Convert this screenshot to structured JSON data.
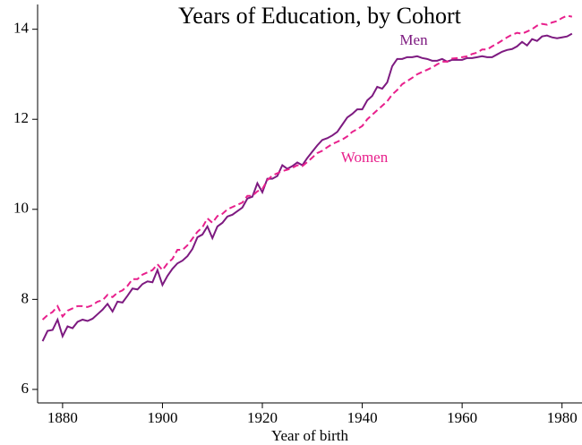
{
  "chart_data": {
    "type": "line",
    "title": "Years of Education, by Cohort",
    "xlabel": "Year of birth",
    "x": [
      1876,
      1877,
      1878,
      1879,
      1880,
      1881,
      1882,
      1883,
      1884,
      1885,
      1886,
      1887,
      1888,
      1889,
      1890,
      1891,
      1892,
      1893,
      1894,
      1895,
      1896,
      1897,
      1898,
      1899,
      1900,
      1901,
      1902,
      1903,
      1904,
      1905,
      1906,
      1907,
      1908,
      1909,
      1910,
      1911,
      1912,
      1913,
      1914,
      1915,
      1916,
      1917,
      1918,
      1919,
      1920,
      1921,
      1922,
      1923,
      1924,
      1925,
      1926,
      1927,
      1928,
      1929,
      1930,
      1931,
      1932,
      1933,
      1934,
      1935,
      1936,
      1937,
      1938,
      1939,
      1940,
      1941,
      1942,
      1943,
      1944,
      1945,
      1946,
      1947,
      1948,
      1949,
      1950,
      1951,
      1952,
      1953,
      1954,
      1955,
      1956,
      1957,
      1958,
      1959,
      1960,
      1961,
      1962,
      1963,
      1964,
      1965,
      1966,
      1967,
      1968,
      1969,
      1970,
      1971,
      1972,
      1973,
      1974,
      1975,
      1976,
      1977,
      1978,
      1979,
      1980,
      1981,
      1982
    ],
    "series": [
      {
        "name": "Men",
        "color": "#7d1a80",
        "style": "solid",
        "values": [
          7.07,
          7.3,
          7.32,
          7.55,
          7.18,
          7.4,
          7.36,
          7.5,
          7.55,
          7.52,
          7.57,
          7.67,
          7.77,
          7.9,
          7.73,
          7.95,
          7.93,
          8.08,
          8.24,
          8.22,
          8.34,
          8.4,
          8.38,
          8.65,
          8.32,
          8.52,
          8.68,
          8.8,
          8.86,
          8.96,
          9.12,
          9.38,
          9.44,
          9.62,
          9.36,
          9.62,
          9.7,
          9.84,
          9.88,
          9.96,
          10.04,
          10.24,
          10.28,
          10.58,
          10.38,
          10.68,
          10.68,
          10.74,
          10.98,
          10.9,
          10.96,
          11.04,
          10.98,
          11.14,
          11.28,
          11.42,
          11.54,
          11.58,
          11.64,
          11.72,
          11.88,
          12.04,
          12.12,
          12.22,
          12.22,
          12.42,
          12.52,
          12.72,
          12.68,
          12.82,
          13.18,
          13.34,
          13.34,
          13.38,
          13.38,
          13.4,
          13.36,
          13.34,
          13.3,
          13.3,
          13.34,
          13.28,
          13.32,
          13.32,
          13.32,
          13.36,
          13.36,
          13.38,
          13.4,
          13.38,
          13.38,
          13.44,
          13.5,
          13.54,
          13.56,
          13.62,
          13.72,
          13.64,
          13.78,
          13.74,
          13.84,
          13.86,
          13.82,
          13.8,
          13.82,
          13.84,
          13.9
        ]
      },
      {
        "name": "Women",
        "color": "#e8208c",
        "style": "dashed",
        "values": [
          7.55,
          7.65,
          7.72,
          7.85,
          7.62,
          7.75,
          7.8,
          7.85,
          7.85,
          7.83,
          7.87,
          7.95,
          7.98,
          8.1,
          8.05,
          8.15,
          8.2,
          8.3,
          8.45,
          8.45,
          8.55,
          8.6,
          8.65,
          8.78,
          8.65,
          8.8,
          8.9,
          9.1,
          9.1,
          9.2,
          9.35,
          9.5,
          9.6,
          9.8,
          9.7,
          9.85,
          9.9,
          10.0,
          10.05,
          10.1,
          10.15,
          10.3,
          10.3,
          10.4,
          10.45,
          10.65,
          10.75,
          10.8,
          10.85,
          10.88,
          10.92,
          10.98,
          10.96,
          11.05,
          11.15,
          11.25,
          11.3,
          11.38,
          11.45,
          11.5,
          11.55,
          11.62,
          11.72,
          11.78,
          11.85,
          12.0,
          12.1,
          12.2,
          12.3,
          12.4,
          12.55,
          12.65,
          12.78,
          12.85,
          12.92,
          13.0,
          13.05,
          13.1,
          13.15,
          13.22,
          13.28,
          13.28,
          13.35,
          13.36,
          13.38,
          13.4,
          13.45,
          13.48,
          13.55,
          13.55,
          13.62,
          13.68,
          13.75,
          13.82,
          13.88,
          13.92,
          13.9,
          13.95,
          14.0,
          14.08,
          14.12,
          14.1,
          14.15,
          14.18,
          14.25,
          14.3,
          14.28
        ]
      }
    ],
    "xlim": [
      1875,
      1984
    ],
    "ylim": [
      5.7,
      14.55
    ],
    "xticks": [
      1880,
      1900,
      1920,
      1940,
      1960,
      1980
    ],
    "yticks": [
      6,
      8,
      10,
      12,
      14
    ]
  }
}
